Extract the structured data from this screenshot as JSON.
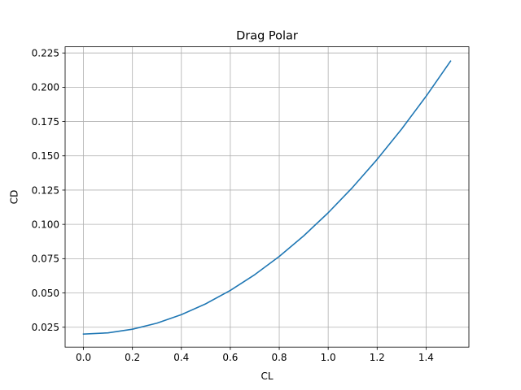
{
  "chart_data": {
    "type": "line",
    "title": "Drag Polar",
    "xlabel": "CL",
    "ylabel": "CD",
    "xlim": [
      -0.075,
      1.575
    ],
    "ylim": [
      0.0105,
      0.2295
    ],
    "xticks": [
      0.0,
      0.2,
      0.4,
      0.6,
      0.8,
      1.0,
      1.2,
      1.4
    ],
    "xtick_labels": [
      "0.0",
      "0.2",
      "0.4",
      "0.6",
      "0.8",
      "1.0",
      "1.2",
      "1.4"
    ],
    "yticks": [
      0.025,
      0.05,
      0.075,
      0.1,
      0.125,
      0.15,
      0.175,
      0.2,
      0.225
    ],
    "ytick_labels": [
      "0.025",
      "0.050",
      "0.075",
      "0.100",
      "0.125",
      "0.150",
      "0.175",
      "0.200",
      "0.225"
    ],
    "grid": true,
    "series": [
      {
        "color": "#1f77b4",
        "x": [
          0.0,
          0.1,
          0.2,
          0.3,
          0.4,
          0.5,
          0.6,
          0.7,
          0.8,
          0.9,
          1.0,
          1.1,
          1.2,
          1.3,
          1.4,
          1.5
        ],
        "y": [
          0.02,
          0.02088,
          0.02354,
          0.02796,
          0.03415,
          0.04211,
          0.05184,
          0.06334,
          0.07661,
          0.09165,
          0.10846,
          0.12704,
          0.14739,
          0.16951,
          0.1934,
          0.21906
        ]
      }
    ]
  }
}
